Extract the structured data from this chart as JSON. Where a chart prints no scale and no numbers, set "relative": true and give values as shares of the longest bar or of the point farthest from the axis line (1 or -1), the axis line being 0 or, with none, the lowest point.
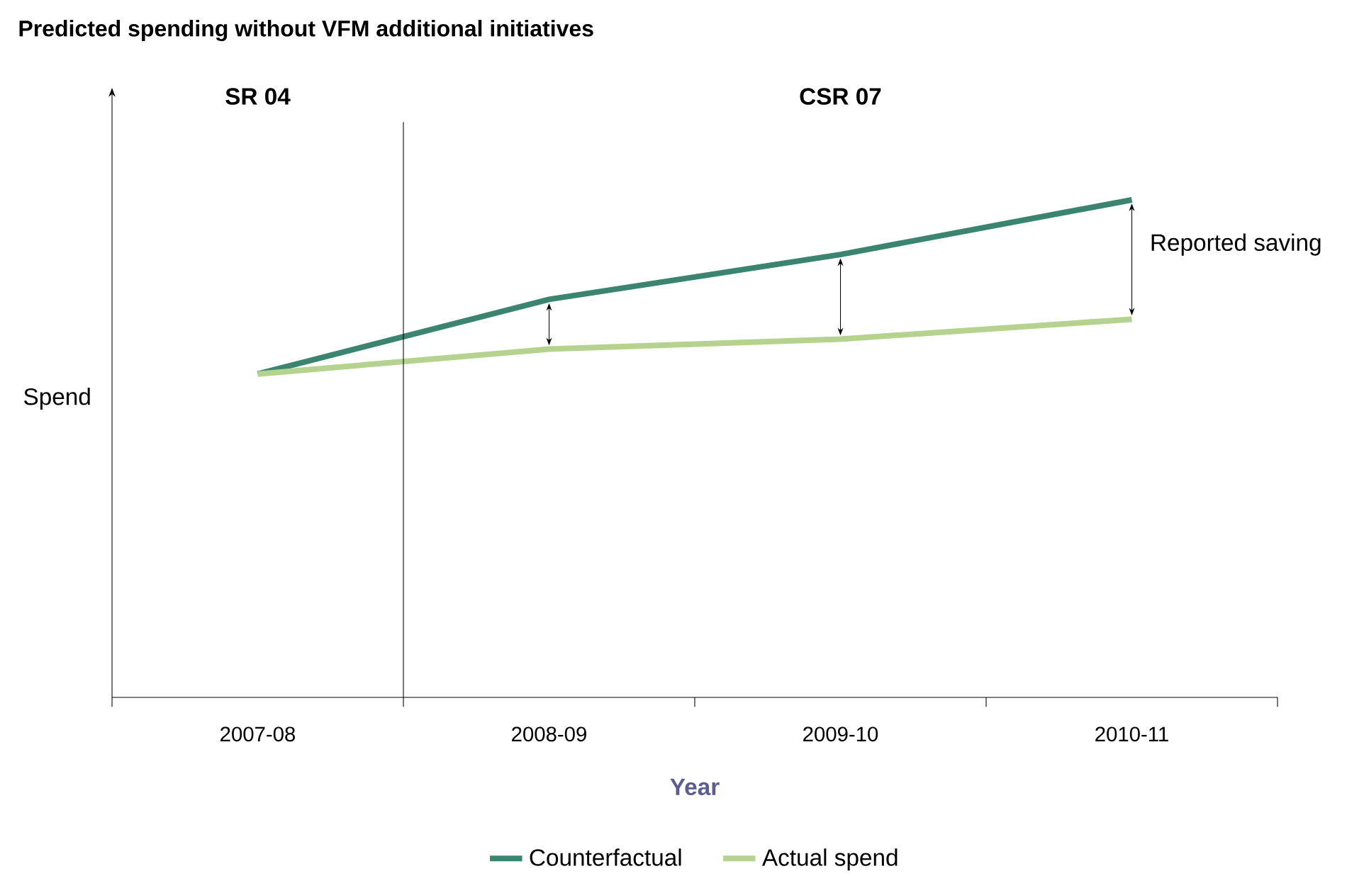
{
  "chart_data": {
    "type": "line",
    "relative": true,
    "title": "Predicted spending without VFM additional initiatives",
    "xlabel": "Year",
    "ylabel": "Spend",
    "categories": [
      "2007-08",
      "2008-09",
      "2009-10",
      "2010-11"
    ],
    "series": [
      {
        "name": "Counterfactual",
        "color": "#3a8470",
        "values": [
          0.65,
          0.8,
          0.89,
          1.0
        ]
      },
      {
        "name": "Actual spend",
        "color": "#b5d38e",
        "values": [
          0.65,
          0.7,
          0.72,
          0.76
        ]
      }
    ],
    "annotations": [
      "SR 04",
      "CSR 07",
      "Reported saving"
    ],
    "legend": "bottom",
    "marker": "none",
    "line_style": "solid"
  }
}
